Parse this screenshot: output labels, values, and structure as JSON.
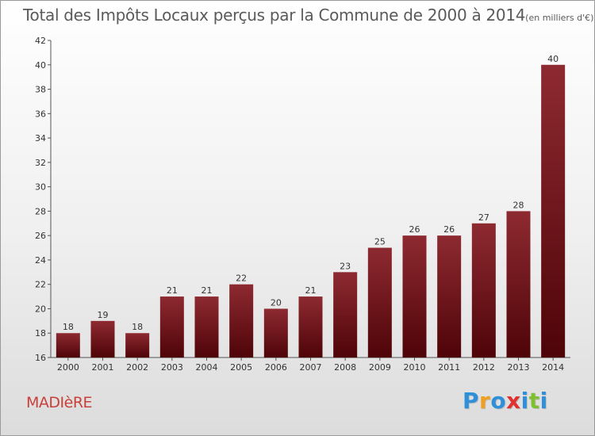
{
  "chart_data": {
    "type": "bar",
    "title": "Total des Impôts Locaux perçus par la Commune de 2000 à 2014",
    "unit_note": "(en milliers d'€)",
    "categories": [
      "2000",
      "2001",
      "2002",
      "2003",
      "2004",
      "2005",
      "2006",
      "2007",
      "2008",
      "2009",
      "2010",
      "2011",
      "2012",
      "2013",
      "2014"
    ],
    "values": [
      18,
      19,
      18,
      21,
      21,
      22,
      20,
      21,
      23,
      25,
      26,
      26,
      27,
      28,
      40
    ],
    "ylim": [
      16,
      42
    ],
    "yticks": [
      16,
      18,
      20,
      22,
      24,
      26,
      28,
      30,
      32,
      34,
      36,
      38,
      40,
      42
    ],
    "xlabel": "",
    "ylabel": "",
    "bar_color": "#7a1a20",
    "grid": false
  },
  "commune_name": "MADIèRE",
  "logo": {
    "letters": [
      "P",
      "r",
      "o",
      "x",
      "i",
      "t",
      "i"
    ],
    "colors": [
      "#2f8fd8",
      "#f0a020",
      "#2f8fd8",
      "#e03030",
      "#2f8fd8",
      "#80c030",
      "#2f8fd8"
    ]
  }
}
